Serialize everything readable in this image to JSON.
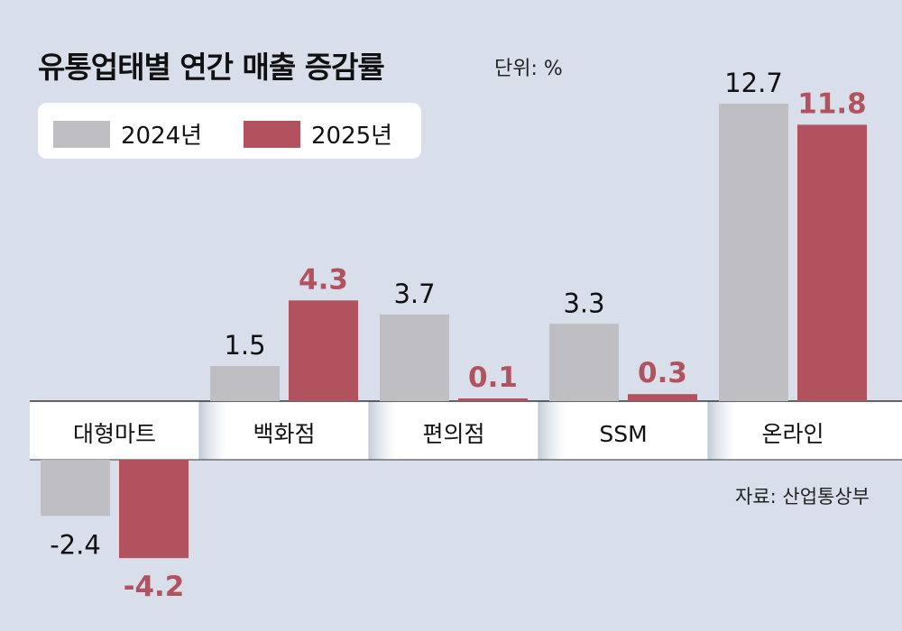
{
  "title": "유통업태별 연간 매출 증감률",
  "unit": "단위: %",
  "source": "자료: 산업통상부",
  "colors": {
    "series_2024": "#bebec3",
    "series_2025": "#b2525f",
    "background": "#d9dfea"
  },
  "chart_data": {
    "type": "bar",
    "categories": [
      "대형마트",
      "백화점",
      "편의점",
      "SSM",
      "온라인"
    ],
    "series": [
      {
        "name": "2024년",
        "values": [
          -2.4,
          1.5,
          3.7,
          3.3,
          12.7
        ],
        "labels": [
          "-2.4",
          "1.5",
          "3.7",
          "3.3",
          "12.7"
        ]
      },
      {
        "name": "2025년",
        "values": [
          -4.2,
          4.3,
          0.1,
          0.3,
          11.8
        ],
        "labels": [
          "-4.2",
          "4.3",
          "0.1",
          "0.3",
          "11.8"
        ]
      }
    ],
    "title": "유통업태별 연간 매출 증감률",
    "ylabel": "단위: %",
    "legend": "top-left",
    "grid": false
  }
}
